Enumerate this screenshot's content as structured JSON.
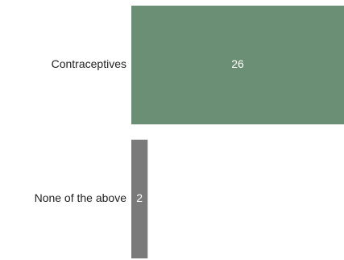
{
  "chart_data": {
    "type": "bar",
    "orientation": "horizontal",
    "categories": [
      "Contraceptives",
      "None of the above"
    ],
    "values": [
      26,
      2
    ],
    "data_labels": [
      "26",
      "2"
    ],
    "colors": [
      "#6b8f74",
      "#7a7a7a"
    ],
    "xlim": [
      0,
      26
    ],
    "grid": false,
    "legend": "none"
  }
}
